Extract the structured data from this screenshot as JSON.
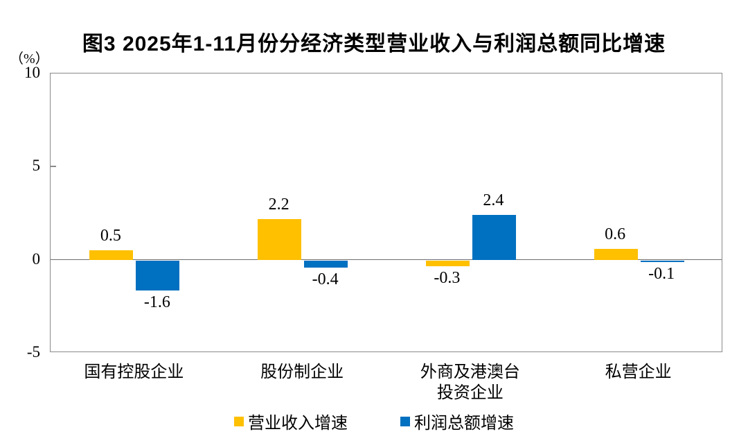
{
  "title": "图3  2025年1-11月份分经济类型营业收入与利润总额同比增速",
  "chart_data": {
    "type": "bar",
    "title": "图3  2025年1-11月份分经济类型营业收入与利润总额同比增速",
    "unit_label": "（%）",
    "categories": [
      "国有控股企业",
      "股份制企业",
      "外商及港澳台\n投资企业",
      "私营企业"
    ],
    "series": [
      {
        "name": "营业收入增速",
        "color": "#FFC000",
        "values": [
          0.5,
          2.2,
          -0.3,
          0.6
        ]
      },
      {
        "name": "利润总额增速",
        "color": "#0070C0",
        "values": [
          -1.6,
          -0.4,
          2.4,
          -0.1
        ]
      }
    ],
    "value_labels": {
      "营业收入增速": [
        "0.5",
        "2.2",
        "-0.3",
        "0.6"
      ],
      "利润总额增速": [
        "-1.6",
        "-0.4",
        "2.4",
        "-0.1"
      ]
    },
    "ylim": [
      -5,
      10
    ],
    "yticks": [
      10,
      5,
      0,
      -5
    ],
    "grid": false,
    "legend_position": "bottom"
  },
  "colors": {
    "revenue_series": "#FFC000",
    "profit_series": "#0070C0",
    "plot_border": "#898989",
    "zero_line": "#6d6d6d",
    "text": "#000000",
    "background": "#ffffff"
  }
}
